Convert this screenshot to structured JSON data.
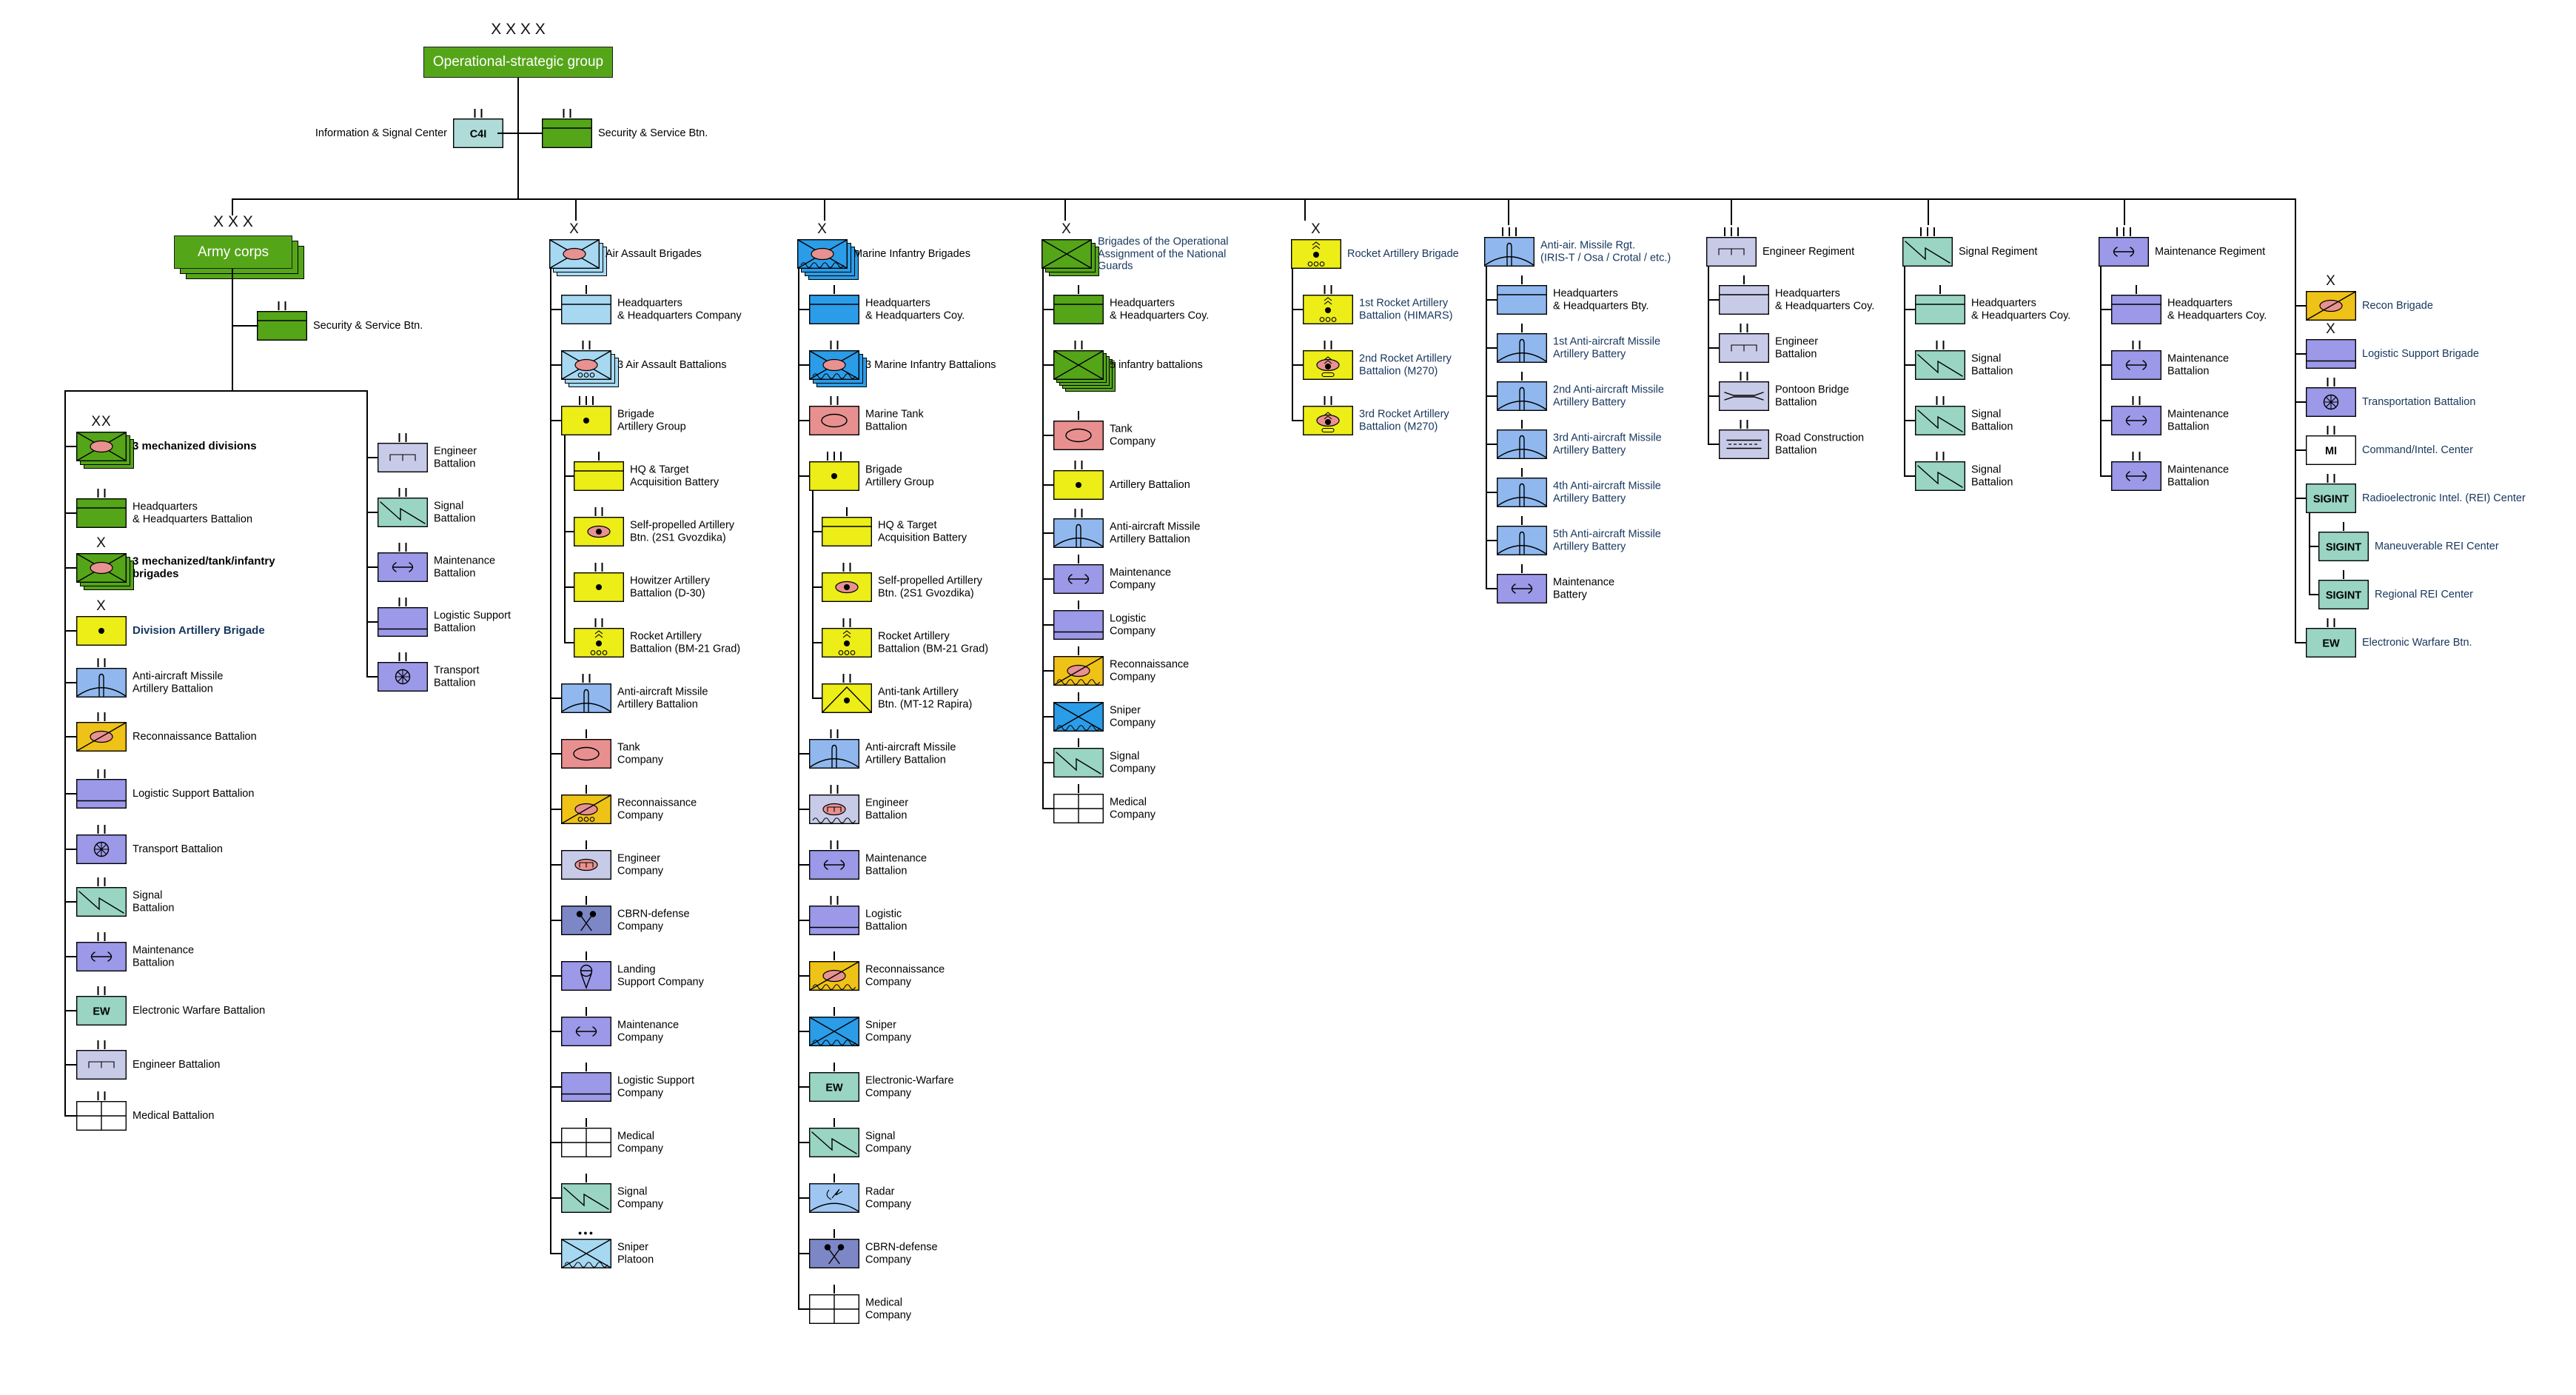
{
  "palette": {
    "green": "#55A519",
    "ltblue": "#A6D8F2",
    "marine": "#2B9CE8",
    "yellow": "#EDED18",
    "orange": "#EFC217",
    "pink": "#E89090",
    "aablue": "#90B8EE",
    "radarblue": "#9FC6F2",
    "lavender": "#C8CBE8",
    "purple": "#9C99E8",
    "teal": "#9AD5C3",
    "cbrnblue": "#7D87C6",
    "white": "#FFFFFF",
    "c4i": "#AFDBD8",
    "navy_text": "#17365D",
    "line": "#000000"
  },
  "top": {
    "echelon": "X X X X",
    "group_label": "Operational-strategic group",
    "corps_echelon": "X X X",
    "corps_label": "Army corps"
  },
  "floating": [
    {
      "id": "c4i",
      "label": "Information & Signal Center",
      "icon": "txt",
      "text": "C4I",
      "color": "c4i",
      "size": "II",
      "side": "left"
    },
    {
      "id": "sec_top",
      "label": "Security & Service Btn.",
      "icon": "hq",
      "color": "green",
      "size": "II"
    },
    {
      "id": "sec_corps",
      "label": "Security & Service Btn.",
      "icon": "hq",
      "color": "green",
      "size": "II"
    }
  ],
  "columns": [
    {
      "id": "corps_main",
      "rows": [
        {
          "label": "3 mechanized divisions",
          "icon": "mech",
          "color": "green",
          "size": "XX",
          "stack": 3,
          "bold": true
        },
        {
          "label": "Headquarters\n& Headquarters Battalion",
          "icon": "hq",
          "color": "green",
          "size": "II"
        },
        {
          "label": "3 mechanized/tank/infantry\nbrigades",
          "icon": "mech",
          "color": "green",
          "size": "X",
          "stack": 3,
          "bold": true
        },
        {
          "label": "Division Artillery Brigade",
          "icon": "art",
          "color": "yellow",
          "size": "X",
          "bold": true,
          "navy": true
        },
        {
          "label": "Anti-aircraft Missile\nArtillery Battalion",
          "icon": "aa",
          "color": "aablue",
          "size": "II"
        },
        {
          "label": "Reconnaissance Battalion",
          "icon": "recon",
          "color": "orange",
          "size": "II"
        },
        {
          "label": "Logistic Support Battalion",
          "icon": "log",
          "color": "purple",
          "size": "II"
        },
        {
          "label": "Transport Battalion",
          "icon": "trans",
          "color": "purple",
          "size": "II"
        },
        {
          "label": "Signal\nBattalion",
          "icon": "sig",
          "color": "teal",
          "size": "II"
        },
        {
          "label": "Maintenance\nBattalion",
          "icon": "maint",
          "color": "purple",
          "size": "II"
        },
        {
          "label": "Electronic Warfare Battalion",
          "icon": "txt",
          "text": "EW",
          "color": "teal",
          "size": "II"
        },
        {
          "label": "Engineer Battalion",
          "icon": "eng",
          "color": "lavender",
          "size": "II"
        },
        {
          "label": "Medical Battalion",
          "icon": "med",
          "color": "white",
          "size": "II"
        }
      ]
    },
    {
      "id": "corps_support",
      "rows": [
        {
          "label": "Engineer\nBattalion",
          "icon": "eng",
          "color": "lavender",
          "size": "II"
        },
        {
          "label": "Signal\nBattalion",
          "icon": "sig",
          "color": "teal",
          "size": "II"
        },
        {
          "label": "Maintenance\nBattalion",
          "icon": "maint",
          "color": "purple",
          "size": "II"
        },
        {
          "label": "Logistic Support\nBattalion",
          "icon": "log",
          "color": "purple",
          "size": "II"
        },
        {
          "label": "Transport\nBattalion",
          "icon": "trans",
          "color": "purple",
          "size": "II"
        }
      ]
    },
    {
      "id": "air_assault",
      "header": {
        "label": "Air Assault Brigades",
        "icon": "mech",
        "color": "ltblue",
        "size": "X",
        "stack": 3
      },
      "rows": [
        {
          "label": "Headquarters\n& Headquarters Company",
          "icon": "hq",
          "color": "ltblue",
          "size": "I"
        },
        {
          "label": "3 Air Assault Battalions",
          "icon": "mech_dots",
          "color": "ltblue",
          "size": "II",
          "stack": 3
        },
        {
          "label": "Brigade\nArtillery Group",
          "icon": "art",
          "color": "yellow",
          "size": "III"
        },
        {
          "label": "HQ & Target\nAcquisition Battery",
          "icon": "hq",
          "color": "yellow",
          "size": "I",
          "ind": true
        },
        {
          "label": "Self-propelled Artillery\nBtn. (2S1 Gvozdika)",
          "icon": "sp_art",
          "color": "yellow",
          "size": "II",
          "ind": true
        },
        {
          "label": "Howitzer Artillery\nBattalion (D-30)",
          "icon": "art",
          "color": "yellow",
          "size": "II",
          "ind": true
        },
        {
          "label": "Rocket Artillery\nBattalion (BM-21 Grad)",
          "icon": "rocket",
          "color": "yellow",
          "size": "II",
          "ind": true
        },
        {
          "label": "Anti-aircraft Missile\nArtillery Battalion",
          "icon": "aa",
          "color": "aablue",
          "size": "II"
        },
        {
          "label": "Tank\nCompany",
          "icon": "tank",
          "color": "pink",
          "size": "I"
        },
        {
          "label": "Reconnaissance\nCompany",
          "icon": "recon_dots",
          "color": "orange",
          "size": "I"
        },
        {
          "label": "Engineer\nCompany",
          "icon": "eng_oval",
          "color": "lavender",
          "size": "I"
        },
        {
          "label": "CBRN-defense\nCompany",
          "icon": "cbrn",
          "color": "cbrnblue",
          "size": "I"
        },
        {
          "label": "Landing\nSupport Company",
          "icon": "land",
          "color": "purple",
          "size": "I"
        },
        {
          "label": "Maintenance\nCompany",
          "icon": "maint",
          "color": "purple",
          "size": "I"
        },
        {
          "label": "Logistic Support\nCompany",
          "icon": "log",
          "color": "purple",
          "size": "I"
        },
        {
          "label": "Medical\nCompany",
          "icon": "med",
          "color": "white",
          "size": "I"
        },
        {
          "label": "Signal\nCompany",
          "icon": "sig",
          "color": "teal",
          "size": "I"
        },
        {
          "label": "Sniper\nPlatoon",
          "icon": "sniper",
          "color": "ltblue",
          "size": "P"
        }
      ]
    },
    {
      "id": "marine",
      "header": {
        "label": "Marine Infantry Brigades",
        "icon": "mech_wave",
        "color": "marine",
        "size": "X",
        "stack": 4
      },
      "rows": [
        {
          "label": "Headquarters\n& Headquarters Coy.",
          "icon": "hq",
          "color": "marine",
          "size": "I"
        },
        {
          "label": "3 Marine Infantry Battalions",
          "icon": "mech_wave",
          "color": "marine",
          "size": "II",
          "stack": 3
        },
        {
          "label": "Marine Tank\nBattalion",
          "icon": "tank",
          "color": "pink",
          "size": "II"
        },
        {
          "label": "Brigade\nArtillery Group",
          "icon": "art",
          "color": "yellow",
          "size": "III"
        },
        {
          "label": "HQ & Target\nAcquisition Battery",
          "icon": "hq",
          "color": "yellow",
          "size": "I",
          "ind": true
        },
        {
          "label": "Self-propelled Artillery\nBtn. (2S1 Gvozdika)",
          "icon": "sp_art",
          "color": "yellow",
          "size": "II",
          "ind": true
        },
        {
          "label": "Rocket Artillery\nBattalion (BM-21 Grad)",
          "icon": "rocket",
          "color": "yellow",
          "size": "II",
          "ind": true
        },
        {
          "label": "Anti-tank Artillery\nBtn. (MT-12 Rapira)",
          "icon": "at",
          "color": "yellow",
          "size": "II",
          "ind": true
        },
        {
          "label": "Anti-aircraft Missile\nArtillery Battalion",
          "icon": "aa",
          "color": "aablue",
          "size": "II"
        },
        {
          "label": "Engineer\nBattalion",
          "icon": "eng_oval_wave",
          "color": "lavender",
          "size": "II"
        },
        {
          "label": "Maintenance\nBattalion",
          "icon": "maint",
          "color": "purple",
          "size": "II"
        },
        {
          "label": "Logistic\nBattalion",
          "icon": "log",
          "color": "purple",
          "size": "II"
        },
        {
          "label": "Reconnaissance\nCompany",
          "icon": "recon_wave",
          "color": "orange",
          "size": "I"
        },
        {
          "label": "Sniper\nCompany",
          "icon": "sniper",
          "color": "marine",
          "size": "I"
        },
        {
          "label": "Electronic-Warfare\nCompany",
          "icon": "txt",
          "text": "EW",
          "color": "teal",
          "size": "I"
        },
        {
          "label": "Signal\nCompany",
          "icon": "sig",
          "color": "teal",
          "size": "I"
        },
        {
          "label": "Radar\nCompany",
          "icon": "radar",
          "color": "radarblue",
          "size": "I"
        },
        {
          "label": "CBRN-defense\nCompany",
          "icon": "cbrn",
          "color": "cbrnblue",
          "size": "I"
        },
        {
          "label": "Medical\nCompany",
          "icon": "med",
          "color": "white",
          "size": "I"
        }
      ]
    },
    {
      "id": "guards",
      "header": {
        "label": "Brigades of the Operational\nAssignment of the National\nGuards",
        "icon": "inf",
        "color": "green",
        "size": "X",
        "stack": 3,
        "navy": true
      },
      "rows": [
        {
          "label": "Headquarters\n& Headquarters Coy.",
          "icon": "hq",
          "color": "green",
          "size": "I"
        },
        {
          "label": "5 infantry battalions",
          "icon": "inf",
          "color": "green",
          "size": "II",
          "stack": 5
        },
        {
          "label": "Tank\nCompany",
          "icon": "tank",
          "color": "pink",
          "size": "I"
        },
        {
          "label": "Artillery Battalion",
          "icon": "art",
          "color": "yellow",
          "size": "II"
        },
        {
          "label": "Anti-aircraft Missile\nArtillery Battalion",
          "icon": "aa",
          "color": "aablue",
          "size": "II"
        },
        {
          "label": "Maintenance\nCompany",
          "icon": "maint",
          "color": "purple",
          "size": "I"
        },
        {
          "label": "Logistic\nCompany",
          "icon": "log",
          "color": "purple",
          "size": "I"
        },
        {
          "label": "Reconnaissance\nCompany",
          "icon": "recon_wave",
          "color": "orange",
          "size": "I"
        },
        {
          "label": "Sniper\nCompany",
          "icon": "sniper",
          "color": "marine",
          "size": "I"
        },
        {
          "label": "Signal\nCompany",
          "icon": "sig",
          "color": "teal",
          "size": "I"
        },
        {
          "label": "Medical\nCompany",
          "icon": "med",
          "color": "white",
          "size": "I"
        }
      ]
    },
    {
      "id": "rocket",
      "header": {
        "label": "Rocket Artillery Brigade",
        "icon": "rocket",
        "color": "yellow",
        "size": "X",
        "navy": true
      },
      "rows": [
        {
          "label": "1st Rocket Artillery\nBattalion (HIMARS)",
          "icon": "rocket",
          "color": "yellow",
          "size": "II",
          "navy": true
        },
        {
          "label": "2nd Rocket Artillery\nBattalion (M270)",
          "icon": "rocket_tr",
          "color": "yellow",
          "size": "II",
          "navy": true
        },
        {
          "label": "3rd Rocket Artillery\nBattalion (M270)",
          "icon": "rocket_tr",
          "color": "yellow",
          "size": "II",
          "navy": true
        }
      ]
    },
    {
      "id": "antiair",
      "header": {
        "label": "Anti-air. Missile Rgt.\n(IRIS-T / Osa / Crotal / etc.)",
        "icon": "aa",
        "color": "aablue",
        "size": "III",
        "navy": true
      },
      "rows": [
        {
          "label": "Headquarters\n& Headquarters Bty.",
          "icon": "hq",
          "color": "aablue",
          "size": "I"
        },
        {
          "label": "1st Anti-aircraft Missile\nArtillery Battery",
          "icon": "aa",
          "color": "aablue",
          "size": "I",
          "navy": true
        },
        {
          "label": "2nd Anti-aircraft Missile\nArtillery Battery",
          "icon": "aa",
          "color": "aablue",
          "size": "I",
          "navy": true
        },
        {
          "label": "3rd Anti-aircraft Missile\nArtillery Battery",
          "icon": "aa",
          "color": "aablue",
          "size": "I",
          "navy": true
        },
        {
          "label": "4th Anti-aircraft Missile\nArtillery Battery",
          "icon": "aa",
          "color": "aablue",
          "size": "I",
          "navy": true
        },
        {
          "label": "5th Anti-aircraft Missile\nArtillery Battery",
          "icon": "aa",
          "color": "aablue",
          "size": "I",
          "navy": true
        },
        {
          "label": "Maintenance\nBattery",
          "icon": "maint",
          "color": "purple",
          "size": "I"
        }
      ]
    },
    {
      "id": "eng_rgt",
      "header": {
        "label": "Engineer Regiment",
        "icon": "eng",
        "color": "lavender",
        "size": "III"
      },
      "rows": [
        {
          "label": "Headquarters\n& Headquarters Coy.",
          "icon": "hq",
          "color": "lavender",
          "size": "I"
        },
        {
          "label": "Engineer\nBattalion",
          "icon": "eng",
          "color": "lavender",
          "size": "II"
        },
        {
          "label": "Pontoon Bridge\nBattalion",
          "icon": "pontoon",
          "color": "lavender",
          "size": "II"
        },
        {
          "label": "Road Construction\nBattalion",
          "icon": "road",
          "color": "lavender",
          "size": "II"
        }
      ]
    },
    {
      "id": "sig_rgt",
      "header": {
        "label": "Signal Regiment",
        "icon": "sig",
        "color": "teal",
        "size": "III"
      },
      "rows": [
        {
          "label": "Headquarters\n& Headquarters Coy.",
          "icon": "hq",
          "color": "teal",
          "size": "I"
        },
        {
          "label": "Signal\nBattalion",
          "icon": "sig",
          "color": "teal",
          "size": "II"
        },
        {
          "label": "Signal\nBattalion",
          "icon": "sig",
          "color": "teal",
          "size": "II"
        },
        {
          "label": "Signal\nBattalion",
          "icon": "sig",
          "color": "teal",
          "size": "II"
        }
      ]
    },
    {
      "id": "maint_rgt",
      "header": {
        "label": "Maintenance Regiment",
        "icon": "maint",
        "color": "purple",
        "size": "III"
      },
      "rows": [
        {
          "label": "Headquarters\n& Headquarters Coy.",
          "icon": "hq",
          "color": "purple",
          "size": "I"
        },
        {
          "label": "Maintenance\nBattalion",
          "icon": "maint",
          "color": "purple",
          "size": "II"
        },
        {
          "label": "Maintenance\nBattalion",
          "icon": "maint",
          "color": "purple",
          "size": "II"
        },
        {
          "label": "Maintenance\nBattalion",
          "icon": "maint",
          "color": "purple",
          "size": "II"
        }
      ]
    },
    {
      "id": "right",
      "rows": [
        {
          "label": "Recon Brigade",
          "icon": "recon",
          "color": "orange",
          "size": "X",
          "navy": true
        },
        {
          "label": "Logistic Support Brigade",
          "icon": "log",
          "color": "purple",
          "size": "X",
          "navy": true
        },
        {
          "label": "Transportation Battalion",
          "icon": "trans",
          "color": "purple",
          "size": "II",
          "navy": true
        },
        {
          "label": "Command/Intel. Center",
          "icon": "txt",
          "text": "MI",
          "color": "white",
          "size": "II",
          "navy": true
        },
        {
          "label": "Radioelectronic Intel. (REI) Center",
          "icon": "txt",
          "text": "SIGINT",
          "color": "teal",
          "size": "II",
          "navy": true
        },
        {
          "label": "Maneuverable REI Center",
          "icon": "txt",
          "text": "SIGINT",
          "color": "teal",
          "size": "I",
          "navy": true,
          "ind": true
        },
        {
          "label": "Regional REI Center",
          "icon": "txt",
          "text": "SIGINT",
          "color": "teal",
          "size": "I",
          "navy": true,
          "ind": true
        },
        {
          "label": "Electronic Warfare Btn.",
          "icon": "txt",
          "text": "EW",
          "color": "teal",
          "size": "II",
          "navy": true
        }
      ]
    }
  ]
}
